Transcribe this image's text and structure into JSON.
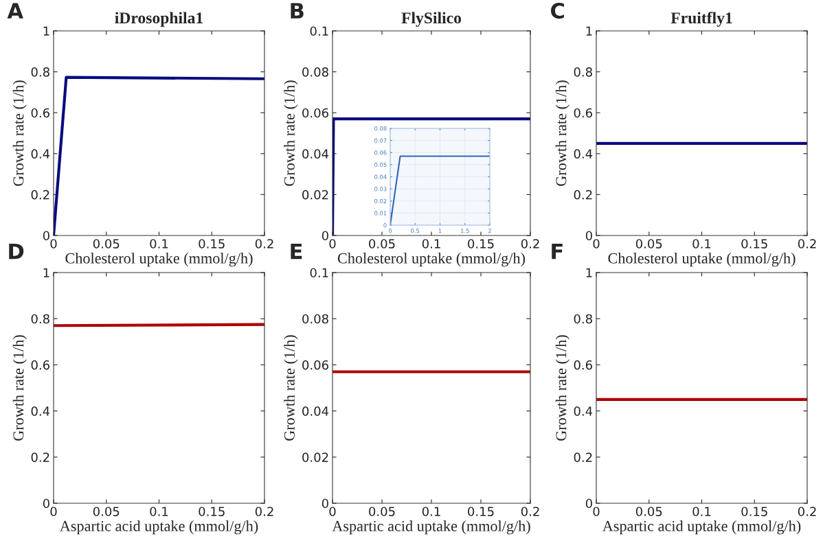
{
  "chart_data": [
    {
      "type": "line",
      "title": "iDrosophila1",
      "xlabel": "Cholesterol uptake (mmol/g/h)",
      "ylabel": "Growth rate (1/h)",
      "annotations": [
        "A"
      ],
      "x": [
        0,
        0.012,
        0.2
      ],
      "series": [
        {
          "color": "#0a0a80",
          "values": [
            0,
            0.773,
            0.766
          ]
        }
      ],
      "xlim": [
        0,
        0.2
      ],
      "xticks": [
        0,
        0.05,
        0.1,
        0.15,
        0.2
      ],
      "ylim": [
        0,
        1
      ],
      "yticks": [
        0,
        0.2,
        0.4,
        0.6,
        0.8,
        1
      ],
      "grid": false
    },
    {
      "type": "line",
      "title": "FlySilico",
      "xlabel": "Cholesterol uptake (mmol/g/h)",
      "ylabel": "Growth rate (1/h)",
      "annotations": [
        "B"
      ],
      "x": [
        0,
        0.001,
        0.2
      ],
      "series": [
        {
          "color": "#0a0a80",
          "values": [
            0,
            0.057,
            0.057
          ]
        }
      ],
      "xlim": [
        0,
        0.2
      ],
      "xticks": [
        0,
        0.05,
        0.1,
        0.15,
        0.2
      ],
      "ylim": [
        0,
        0.1
      ],
      "yticks": [
        0,
        0.02,
        0.04,
        0.06,
        0.08,
        0.1
      ],
      "grid": false
    },
    {
      "type": "line",
      "x": [
        0,
        0.2,
        2
      ],
      "series": [
        {
          "color": "#2e64b8",
          "values": [
            0,
            0.057,
            0.057
          ]
        }
      ],
      "xlim": [
        0,
        2
      ],
      "xticks": [
        0,
        0.5,
        1,
        1.5,
        2
      ],
      "ylim": [
        0,
        0.08
      ],
      "yticks": [
        0,
        0.01,
        0.02,
        0.03,
        0.04,
        0.05,
        0.06,
        0.07,
        0.08
      ],
      "grid": true
    },
    {
      "type": "line",
      "title": "Fruitfly1",
      "xlabel": "Cholesterol uptake (mmol/g/h)",
      "ylabel": "Growth rate (1/h)",
      "annotations": [
        "C"
      ],
      "x": [
        0,
        0.2
      ],
      "series": [
        {
          "color": "#0a0a80",
          "values": [
            0.45,
            0.45
          ]
        }
      ],
      "xlim": [
        0,
        0.2
      ],
      "xticks": [
        0,
        0.05,
        0.1,
        0.15,
        0.2
      ],
      "ylim": [
        0,
        1
      ],
      "yticks": [
        0,
        0.2,
        0.4,
        0.6,
        0.8,
        1
      ],
      "grid": false
    },
    {
      "type": "line",
      "xlabel": "Aspartic acid uptake (mmol/g/h)",
      "ylabel": "Growth rate (1/h)",
      "annotations": [
        "D"
      ],
      "x": [
        0,
        0.2
      ],
      "series": [
        {
          "color": "#b00000",
          "values": [
            0.77,
            0.775
          ]
        }
      ],
      "xlim": [
        0,
        0.2
      ],
      "xticks": [
        0,
        0.05,
        0.1,
        0.15,
        0.2
      ],
      "ylim": [
        0,
        1
      ],
      "yticks": [
        0,
        0.2,
        0.4,
        0.6,
        0.8,
        1
      ],
      "grid": false
    },
    {
      "type": "line",
      "xlabel": "Aspartic acid uptake (mmol/g/h)",
      "ylabel": "Growth rate (1/h)",
      "annotations": [
        "E"
      ],
      "x": [
        0,
        0.2
      ],
      "series": [
        {
          "color": "#b00000",
          "values": [
            0.057,
            0.057
          ]
        }
      ],
      "xlim": [
        0,
        0.2
      ],
      "xticks": [
        0,
        0.05,
        0.1,
        0.15,
        0.2
      ],
      "ylim": [
        0,
        0.1
      ],
      "yticks": [
        0,
        0.02,
        0.04,
        0.06,
        0.08,
        0.1
      ],
      "grid": false
    },
    {
      "type": "line",
      "xlabel": "Aspartic acid uptake (mmol/g/h)",
      "ylabel": "Growth rate (1/h)",
      "annotations": [
        "F"
      ],
      "x": [
        0,
        0.2
      ],
      "series": [
        {
          "color": "#b00000",
          "values": [
            0.45,
            0.45
          ]
        }
      ],
      "xlim": [
        0,
        0.2
      ],
      "xticks": [
        0,
        0.05,
        0.1,
        0.15,
        0.2
      ],
      "ylim": [
        0,
        1
      ],
      "yticks": [
        0,
        0.2,
        0.4,
        0.6,
        0.8,
        1
      ],
      "grid": false
    }
  ]
}
